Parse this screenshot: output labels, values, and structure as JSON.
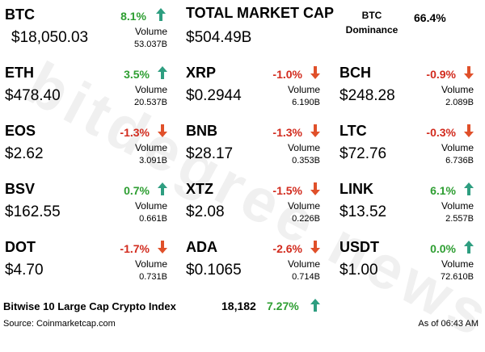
{
  "watermark": "bitdegree news",
  "btc": {
    "symbol": "BTC",
    "price": "$18,050.03",
    "change": "8.1%",
    "direction": "up",
    "volume_label": "Volume",
    "volume": "53.037B"
  },
  "market_cap": {
    "title": "TOTAL MARKET CAP",
    "value": "$504.49B"
  },
  "dominance": {
    "label": "BTC Dominance",
    "value": "66.4%"
  },
  "coins": [
    {
      "symbol": "ETH",
      "price": "$478.40",
      "change": "3.5%",
      "direction": "up",
      "volume_label": "Volume",
      "volume": "20.537B"
    },
    {
      "symbol": "XRP",
      "price": "$0.2944",
      "change": "-1.0%",
      "direction": "down",
      "volume_label": "Volume",
      "volume": "6.190B"
    },
    {
      "symbol": "BCH",
      "price": "$248.28",
      "change": "-0.9%",
      "direction": "down",
      "volume_label": "Volume",
      "volume": "2.089B"
    },
    {
      "symbol": "EOS",
      "price": "$2.62",
      "change": "-1.3%",
      "direction": "down",
      "volume_label": "Volume",
      "volume": "3.091B"
    },
    {
      "symbol": "BNB",
      "price": "$28.17",
      "change": "-1.3%",
      "direction": "down",
      "volume_label": "Volume",
      "volume": "0.353B"
    },
    {
      "symbol": "LTC",
      "price": "$72.76",
      "change": "-0.3%",
      "direction": "down",
      "volume_label": "Volume",
      "volume": "6.736B"
    },
    {
      "symbol": "BSV",
      "price": "$162.55",
      "change": "0.7%",
      "direction": "up",
      "volume_label": "Volume",
      "volume": "0.661B"
    },
    {
      "symbol": "XTZ",
      "price": "$2.08",
      "change": "-1.5%",
      "direction": "down",
      "volume_label": "Volume",
      "volume": "0.226B"
    },
    {
      "symbol": "LINK",
      "price": "$13.52",
      "change": "6.1%",
      "direction": "up",
      "volume_label": "Volume",
      "volume": "2.557B"
    },
    {
      "symbol": "DOT",
      "price": "$4.70",
      "change": "-1.7%",
      "direction": "down",
      "volume_label": "Volume",
      "volume": "0.731B"
    },
    {
      "symbol": "ADA",
      "price": "$0.1065",
      "change": "-2.6%",
      "direction": "down",
      "volume_label": "Volume",
      "volume": "0.714B"
    },
    {
      "symbol": "USDT",
      "price": "$1.00",
      "change": "0.0%",
      "direction": "up",
      "volume_label": "Volume",
      "volume": "72.610B"
    }
  ],
  "index": {
    "name": "Bitwise 10 Large Cap Crypto Index",
    "value": "18,182",
    "change": "7.27%",
    "direction": "up"
  },
  "footer": {
    "source": "Source: Coinmarketcap.com",
    "as_of": "As of 06:43 AM"
  },
  "colors": {
    "up": "#2e9e32",
    "down": "#d22b1e",
    "arrow_up": "#2e9e80",
    "arrow_down": "#e0502a"
  },
  "icons": {
    "up": "arrow-up-icon",
    "down": "arrow-down-icon"
  }
}
